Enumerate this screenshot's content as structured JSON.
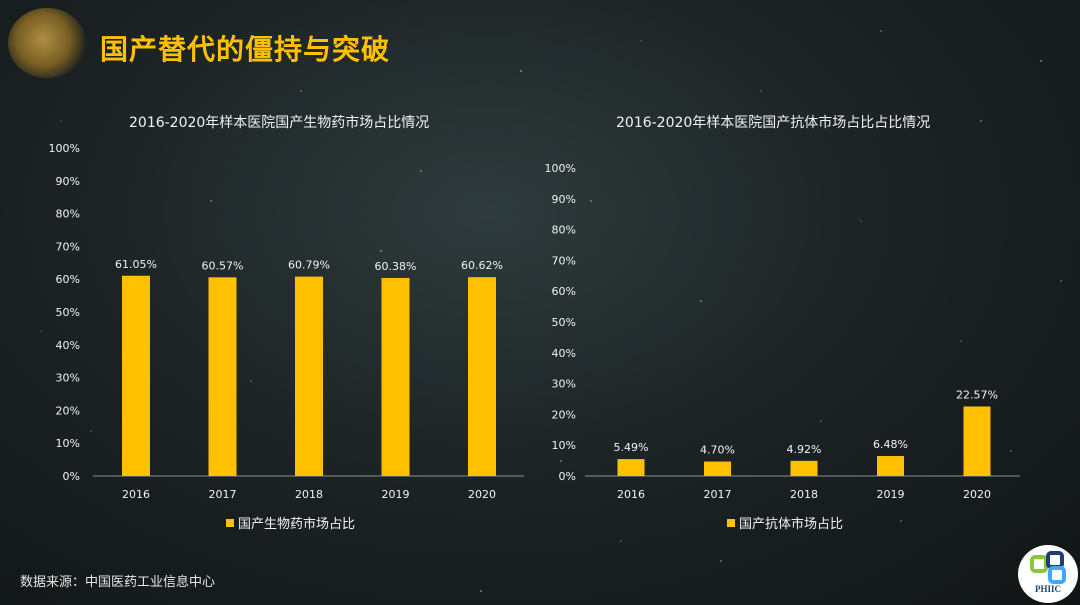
{
  "page": {
    "title": "国产替代的僵持与突破",
    "source": "数据来源：中国医药工业信息中心",
    "brand_logo_text": "PHIIC"
  },
  "colors": {
    "bar": "#ffc000",
    "title": "#ffc000",
    "axis_text": "#f2f2f2"
  },
  "chart_data": [
    {
      "type": "bar",
      "title": "2016-2020年样本医院国产生物药市场占比情况",
      "categories": [
        "2016",
        "2017",
        "2018",
        "2019",
        "2020"
      ],
      "series": [
        {
          "name": "国产生物药市场占比",
          "values": [
            61.05,
            60.57,
            60.79,
            60.38,
            60.62
          ],
          "labels": [
            "61.05%",
            "60.57%",
            "60.79%",
            "60.38%",
            "60.62%"
          ]
        }
      ],
      "ylim": [
        0,
        100
      ],
      "yticks": [
        "0%",
        "10%",
        "20%",
        "30%",
        "40%",
        "50%",
        "60%",
        "70%",
        "80%",
        "90%",
        "100%"
      ],
      "legend": "bottom",
      "grid": false
    },
    {
      "type": "bar",
      "title": "2016-2020年样本医院国产抗体市场占比占比情况",
      "categories": [
        "2016",
        "2017",
        "2018",
        "2019",
        "2020"
      ],
      "series": [
        {
          "name": "国产抗体市场占比",
          "values": [
            5.49,
            4.7,
            4.92,
            6.48,
            22.57
          ],
          "labels": [
            "5.49%",
            "4.70%",
            "4.92%",
            "6.48%",
            "22.57%"
          ]
        }
      ],
      "ylim": [
        0,
        100
      ],
      "yticks": [
        "0%",
        "10%",
        "20%",
        "30%",
        "40%",
        "50%",
        "60%",
        "70%",
        "80%",
        "90%",
        "100%"
      ],
      "legend": "bottom",
      "grid": false
    }
  ]
}
